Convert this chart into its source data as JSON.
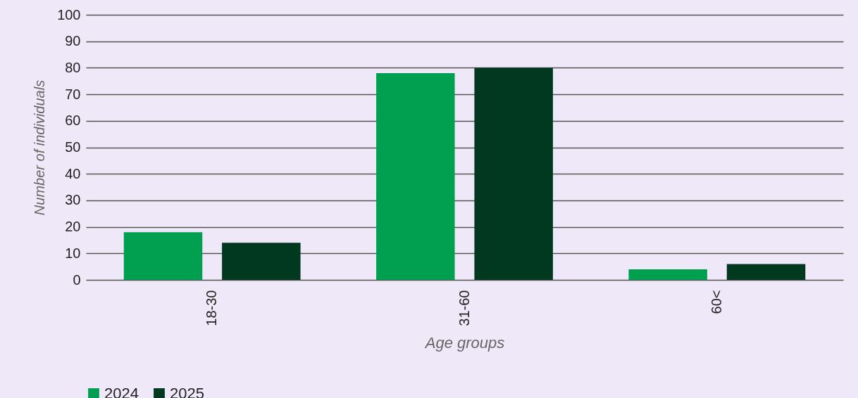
{
  "chart_data": {
    "type": "bar",
    "xlabel": "Age groups",
    "ylabel": "Number of individuals",
    "categories": [
      "18-30",
      "31-60",
      "60<"
    ],
    "series": [
      {
        "name": "2024",
        "color": "#00a050",
        "values": [
          18,
          78,
          4
        ]
      },
      {
        "name": "2025",
        "color": "#003820",
        "values": [
          14,
          80,
          6
        ]
      }
    ],
    "ylim": [
      0,
      100
    ],
    "yticks": [
      0,
      10,
      20,
      30,
      40,
      50,
      60,
      70,
      80,
      90,
      100
    ],
    "grid": "y",
    "legend": "bottom"
  }
}
